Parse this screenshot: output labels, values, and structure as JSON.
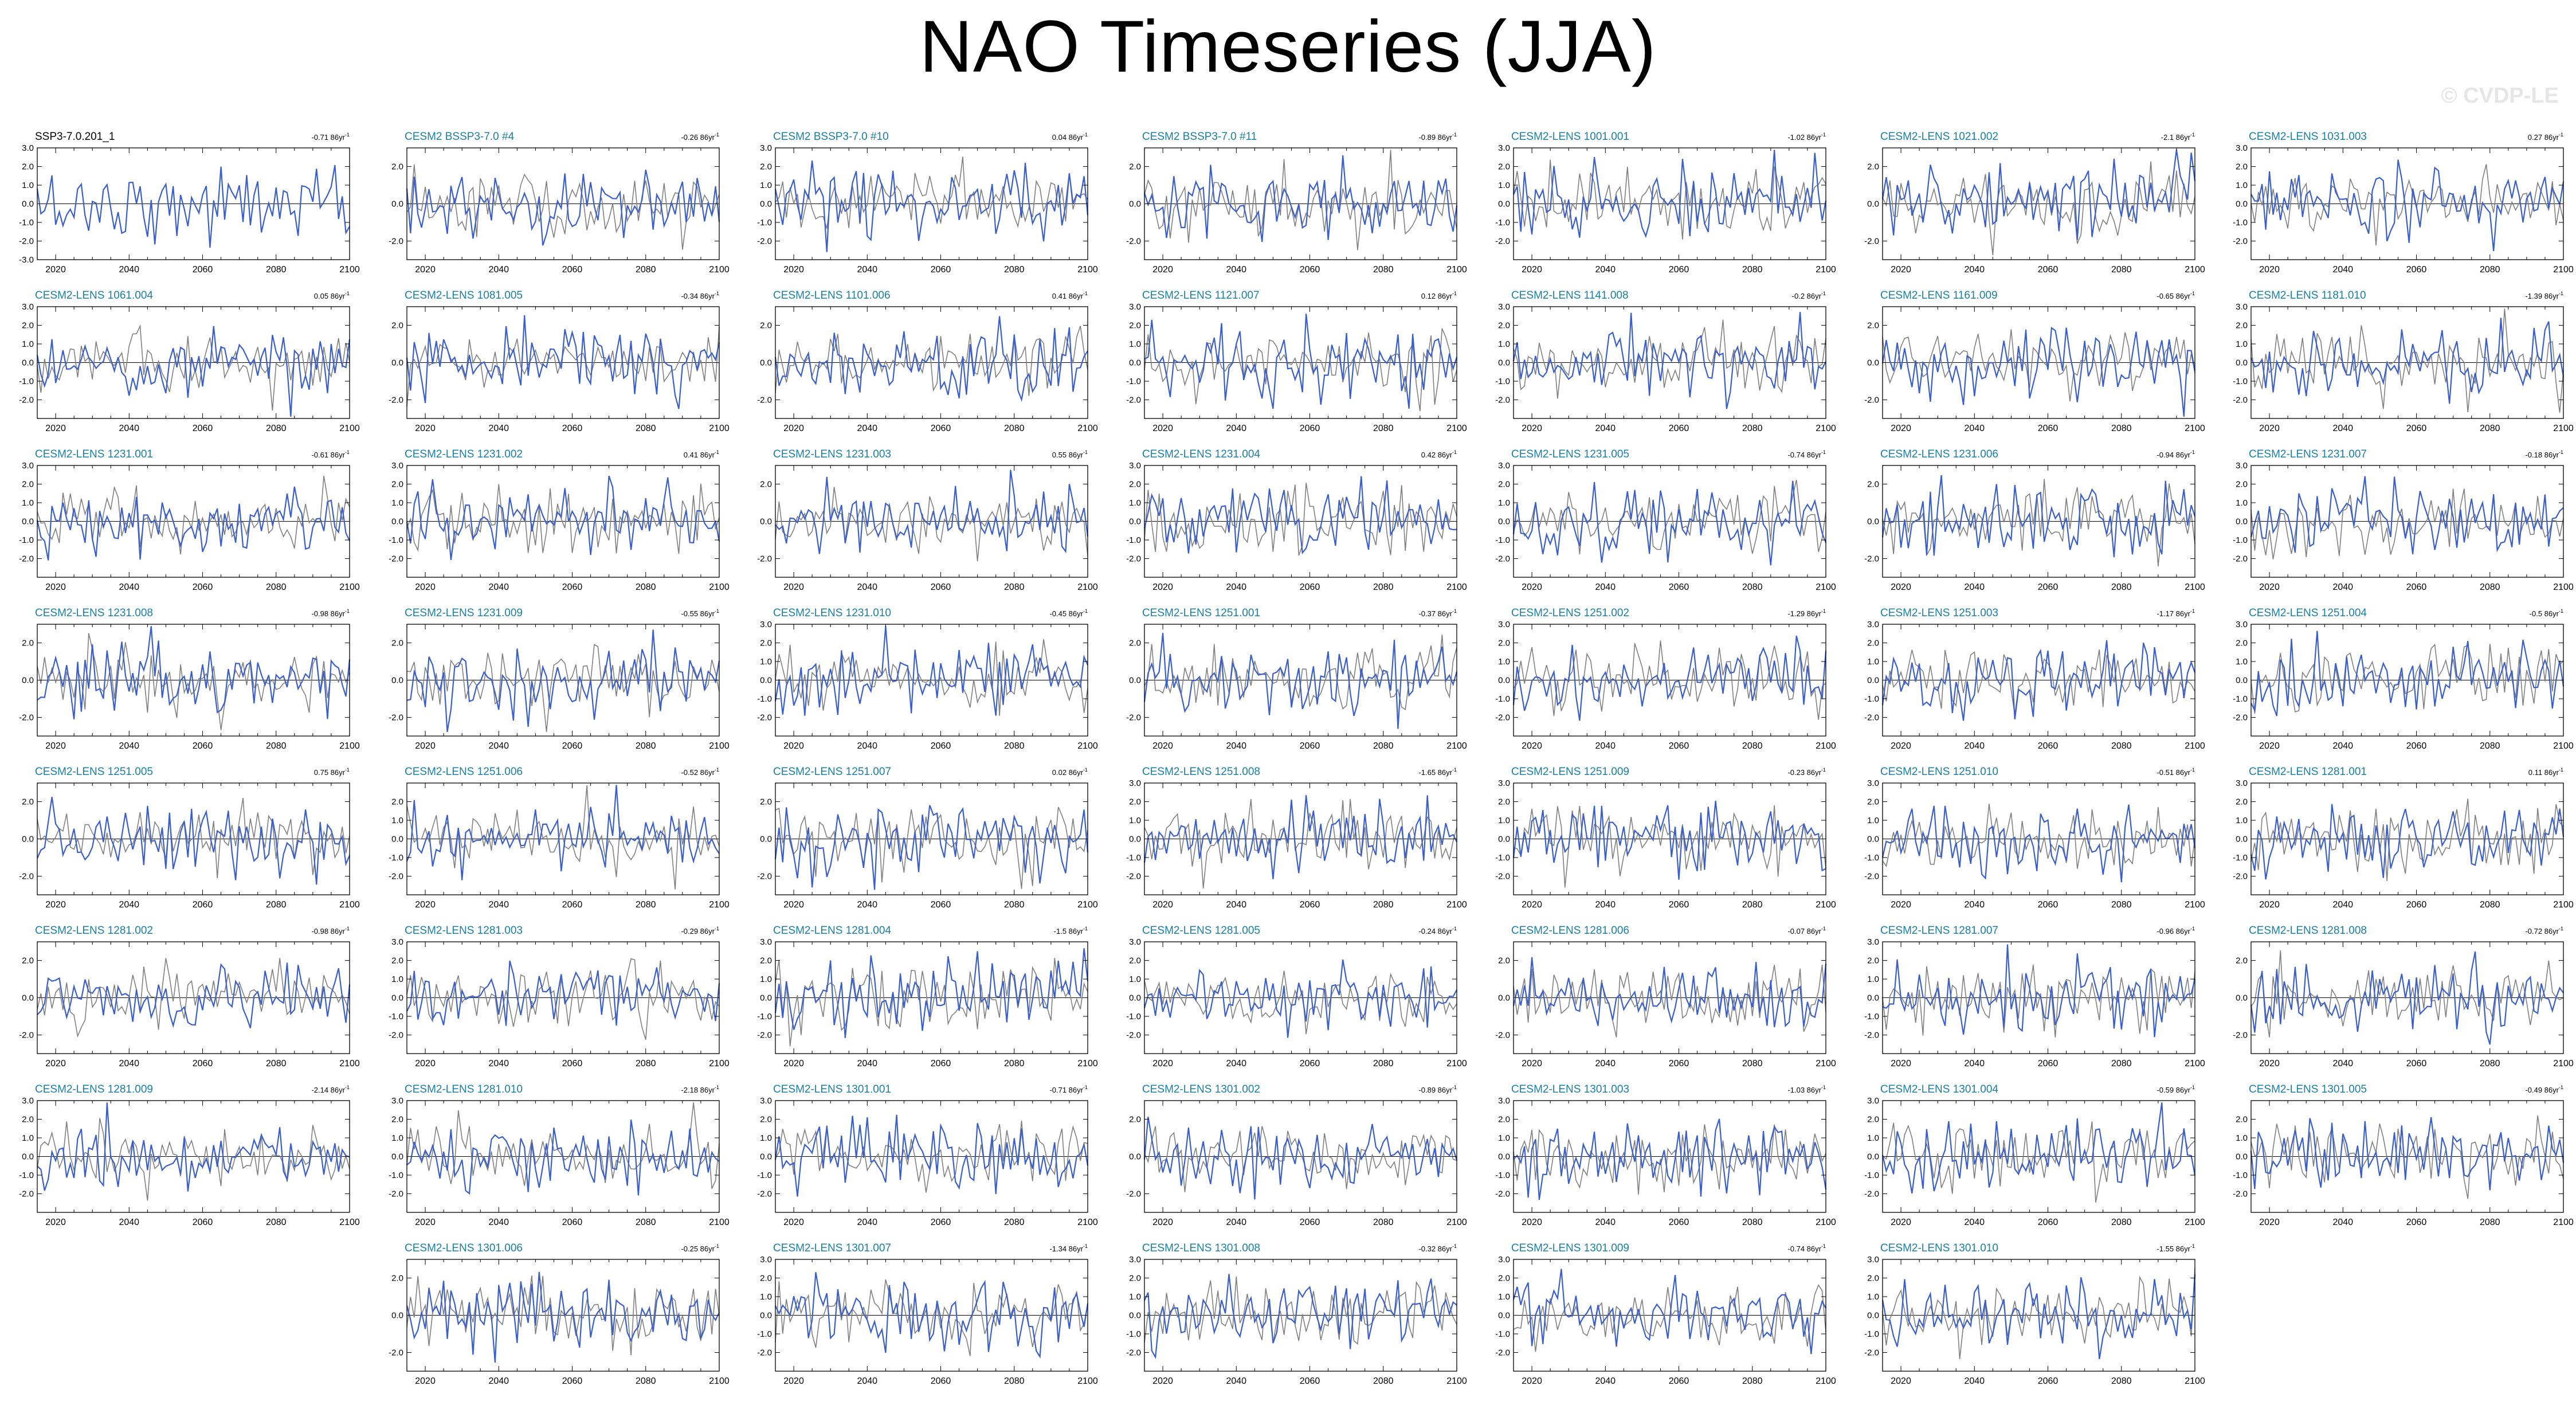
{
  "page": {
    "title": "NAO Timeseries (JJA)",
    "watermark": "© CVDP-LE"
  },
  "colors": {
    "obs_title": "#000000",
    "model_title": "#1a7fa6",
    "model_line": "#3a5fcd",
    "obs_line": "#808080",
    "axis": "#000000"
  },
  "chart_data": {
    "type": "line",
    "xlim": [
      2015,
      2100
    ],
    "x_ticks": [
      2020,
      2040,
      2060,
      2080,
      2100
    ],
    "grid": false,
    "panels": [
      {
        "name": "SSP3-7.0.201_1",
        "trend": "-0.71 86yr",
        "obs": true,
        "yticks": [
          -3.0,
          -2.0,
          -1.0,
          0.0,
          1.0,
          2.0,
          3.0
        ],
        "ylim": [
          -3,
          3
        ]
      },
      {
        "name": "CESM2 BSSP3-7.0 #4",
        "trend": "-0.26 86yr",
        "yticks": [
          -2.0,
          0.0,
          2.0
        ],
        "ylim": [
          -3,
          3
        ]
      },
      {
        "name": "CESM2 BSSP3-7.0 #10",
        "trend": "0.04 86yr",
        "yticks": [
          -2.0,
          -1.0,
          0.0,
          1.0,
          2.0,
          3.0
        ],
        "ylim": [
          -3,
          3
        ]
      },
      {
        "name": "CESM2 BSSP3-7.0 #11",
        "trend": "-0.89 86yr",
        "yticks": [
          -2.0,
          0.0,
          2.0
        ],
        "ylim": [
          -3,
          3
        ]
      },
      {
        "name": "CESM2-LENS 1001.001",
        "trend": "-1.02 86yr",
        "yticks": [
          -2.0,
          -1.0,
          0.0,
          1.0,
          2.0,
          3.0
        ],
        "ylim": [
          -3,
          3
        ]
      },
      {
        "name": "CESM2-LENS 1021.002",
        "trend": "-2.1 86yr",
        "yticks": [
          -2.0,
          0.0,
          2.0
        ],
        "ylim": [
          -3,
          3
        ]
      },
      {
        "name": "CESM2-LENS 1031.003",
        "trend": "0.27 86yr",
        "yticks": [
          -2.0,
          -1.0,
          0.0,
          1.0,
          2.0,
          3.0
        ],
        "ylim": [
          -3,
          3
        ]
      },
      {
        "name": "CESM2-LENS 1061.004",
        "trend": "0.05 86yr",
        "yticks": [
          -2.0,
          -1.0,
          0.0,
          1.0,
          2.0,
          3.0
        ],
        "ylim": [
          -3,
          3
        ]
      },
      {
        "name": "CESM2-LENS 1081.005",
        "trend": "-0.34 86yr",
        "yticks": [
          -2.0,
          0.0,
          2.0
        ],
        "ylim": [
          -3,
          3
        ]
      },
      {
        "name": "CESM2-LENS 1101.006",
        "trend": "0.41 86yr",
        "yticks": [
          -2.0,
          0.0,
          2.0
        ],
        "ylim": [
          -3,
          3
        ]
      },
      {
        "name": "CESM2-LENS 1121.007",
        "trend": "0.12 86yr",
        "yticks": [
          -2.0,
          -1.0,
          0.0,
          1.0,
          2.0,
          3.0
        ],
        "ylim": [
          -3,
          3
        ]
      },
      {
        "name": "CESM2-LENS 1141.008",
        "trend": "-0.2 86yr",
        "yticks": [
          -2.0,
          -1.0,
          0.0,
          1.0,
          2.0,
          3.0
        ],
        "ylim": [
          -3,
          3
        ]
      },
      {
        "name": "CESM2-LENS 1161.009",
        "trend": "-0.65 86yr",
        "yticks": [
          -2.0,
          0.0,
          2.0
        ],
        "ylim": [
          -3,
          3
        ]
      },
      {
        "name": "CESM2-LENS 1181.010",
        "trend": "-1.39 86yr",
        "yticks": [
          -2.0,
          -1.0,
          0.0,
          1.0,
          2.0,
          3.0
        ],
        "ylim": [
          -3,
          3
        ]
      },
      {
        "name": "CESM2-LENS 1231.001",
        "trend": "-0.61 86yr",
        "yticks": [
          -2.0,
          -1.0,
          0.0,
          1.0,
          2.0,
          3.0
        ],
        "ylim": [
          -3,
          3
        ]
      },
      {
        "name": "CESM2-LENS 1231.002",
        "trend": "0.41 86yr",
        "yticks": [
          -2.0,
          -1.0,
          0.0,
          1.0,
          2.0,
          3.0
        ],
        "ylim": [
          -3,
          3
        ]
      },
      {
        "name": "CESM2-LENS 1231.003",
        "trend": "0.55 86yr",
        "yticks": [
          -2.0,
          0.0,
          2.0
        ],
        "ylim": [
          -3,
          3
        ]
      },
      {
        "name": "CESM2-LENS 1231.004",
        "trend": "0.42 86yr",
        "yticks": [
          -2.0,
          -1.0,
          0.0,
          1.0,
          2.0,
          3.0
        ],
        "ylim": [
          -3,
          3
        ]
      },
      {
        "name": "CESM2-LENS 1231.005",
        "trend": "-0.74 86yr",
        "yticks": [
          -2.0,
          -1.0,
          0.0,
          1.0,
          2.0,
          3.0
        ],
        "ylim": [
          -3,
          3
        ]
      },
      {
        "name": "CESM2-LENS 1231.006",
        "trend": "-0.94 86yr",
        "yticks": [
          -2.0,
          0.0,
          2.0
        ],
        "ylim": [
          -3,
          3
        ]
      },
      {
        "name": "CESM2-LENS 1231.007",
        "trend": "-0.18 86yr",
        "yticks": [
          -2.0,
          -1.0,
          0.0,
          1.0,
          2.0,
          3.0
        ],
        "ylim": [
          -3,
          3
        ]
      },
      {
        "name": "CESM2-LENS 1231.008",
        "trend": "-0.98 86yr",
        "yticks": [
          -2.0,
          0.0,
          2.0
        ],
        "ylim": [
          -3,
          3
        ]
      },
      {
        "name": "CESM2-LENS 1231.009",
        "trend": "-0.55 86yr",
        "yticks": [
          -2.0,
          0.0,
          2.0
        ],
        "ylim": [
          -3,
          3
        ]
      },
      {
        "name": "CESM2-LENS 1231.010",
        "trend": "-0.45 86yr",
        "yticks": [
          -2.0,
          -1.0,
          0.0,
          1.0,
          2.0,
          3.0
        ],
        "ylim": [
          -3,
          3
        ]
      },
      {
        "name": "CESM2-LENS 1251.001",
        "trend": "-0.37 86yr",
        "yticks": [
          -2.0,
          0.0,
          2.0
        ],
        "ylim": [
          -3,
          3
        ]
      },
      {
        "name": "CESM2-LENS 1251.002",
        "trend": "-1.29 86yr",
        "yticks": [
          -2.0,
          -1.0,
          0.0,
          1.0,
          2.0,
          3.0
        ],
        "ylim": [
          -3,
          3
        ]
      },
      {
        "name": "CESM2-LENS 1251.003",
        "trend": "-1.17 86yr",
        "yticks": [
          -2.0,
          -1.0,
          0.0,
          1.0,
          2.0,
          3.0
        ],
        "ylim": [
          -3,
          3
        ]
      },
      {
        "name": "CESM2-LENS 1251.004",
        "trend": "-0.5 86yr",
        "yticks": [
          -2.0,
          -1.0,
          0.0,
          1.0,
          2.0,
          3.0
        ],
        "ylim": [
          -3,
          3
        ]
      },
      {
        "name": "CESM2-LENS 1251.005",
        "trend": "0.75 86yr",
        "yticks": [
          -2.0,
          0.0,
          2.0
        ],
        "ylim": [
          -3,
          3
        ]
      },
      {
        "name": "CESM2-LENS 1251.006",
        "trend": "-0.52 86yr",
        "yticks": [
          -2.0,
          -1.0,
          0.0,
          1.0,
          2.0
        ],
        "ylim": [
          -3,
          3
        ]
      },
      {
        "name": "CESM2-LENS 1251.007",
        "trend": "0.02 86yr",
        "yticks": [
          -2.0,
          0.0,
          2.0
        ],
        "ylim": [
          -3,
          3
        ]
      },
      {
        "name": "CESM2-LENS 1251.008",
        "trend": "-1.65 86yr",
        "yticks": [
          -2.0,
          -1.0,
          0.0,
          1.0,
          2.0,
          3.0
        ],
        "ylim": [
          -3,
          3
        ]
      },
      {
        "name": "CESM2-LENS 1251.009",
        "trend": "-0.23 86yr",
        "yticks": [
          -2.0,
          -1.0,
          0.0,
          1.0,
          2.0,
          3.0
        ],
        "ylim": [
          -3,
          3
        ]
      },
      {
        "name": "CESM2-LENS 1251.010",
        "trend": "-0.51 86yr",
        "yticks": [
          -2.0,
          -1.0,
          0.0,
          1.0,
          2.0,
          3.0
        ],
        "ylim": [
          -3,
          3
        ]
      },
      {
        "name": "CESM2-LENS 1281.001",
        "trend": "0.11 86yr",
        "yticks": [
          -2.0,
          -1.0,
          0.0,
          1.0,
          2.0,
          3.0
        ],
        "ylim": [
          -3,
          3
        ]
      },
      {
        "name": "CESM2-LENS 1281.002",
        "trend": "-0.98 86yr",
        "yticks": [
          -2.0,
          0.0,
          2.0
        ],
        "ylim": [
          -3,
          3
        ]
      },
      {
        "name": "CESM2-LENS 1281.003",
        "trend": "-0.29 86yr",
        "yticks": [
          -2.0,
          -1.0,
          0.0,
          1.0,
          2.0,
          3.0
        ],
        "ylim": [
          -3,
          3
        ]
      },
      {
        "name": "CESM2-LENS 1281.004",
        "trend": "-1.5 86yr",
        "yticks": [
          -2.0,
          -1.0,
          0.0,
          1.0,
          2.0,
          3.0
        ],
        "ylim": [
          -3,
          3
        ]
      },
      {
        "name": "CESM2-LENS 1281.005",
        "trend": "-0.24 86yr",
        "yticks": [
          -2.0,
          -1.0,
          0.0,
          1.0,
          2.0,
          3.0
        ],
        "ylim": [
          -3,
          3
        ]
      },
      {
        "name": "CESM2-LENS 1281.006",
        "trend": "-0.07 86yr",
        "yticks": [
          -2.0,
          0.0,
          2.0
        ],
        "ylim": [
          -3,
          3
        ]
      },
      {
        "name": "CESM2-LENS 1281.007",
        "trend": "-0.96 86yr",
        "yticks": [
          -2.0,
          -1.0,
          0.0,
          1.0,
          2.0,
          3.0
        ],
        "ylim": [
          -3,
          3
        ]
      },
      {
        "name": "CESM2-LENS 1281.008",
        "trend": "-0.72 86yr",
        "yticks": [
          -2.0,
          0.0,
          2.0
        ],
        "ylim": [
          -3,
          3
        ]
      },
      {
        "name": "CESM2-LENS 1281.009",
        "trend": "-2.14 86yr",
        "yticks": [
          -2.0,
          -1.0,
          0.0,
          1.0,
          2.0,
          3.0
        ],
        "ylim": [
          -3,
          3
        ]
      },
      {
        "name": "CESM2-LENS 1281.010",
        "trend": "-2.18 86yr",
        "yticks": [
          -2.0,
          -1.0,
          0.0,
          1.0,
          2.0,
          3.0
        ],
        "ylim": [
          -3,
          3
        ]
      },
      {
        "name": "CESM2-LENS 1301.001",
        "trend": "-0.71 86yr",
        "yticks": [
          -2.0,
          -1.0,
          0.0,
          1.0,
          2.0,
          3.0
        ],
        "ylim": [
          -3,
          3
        ]
      },
      {
        "name": "CESM2-LENS 1301.002",
        "trend": "-0.89 86yr",
        "yticks": [
          -2.0,
          0.0,
          2.0
        ],
        "ylim": [
          -3,
          3
        ]
      },
      {
        "name": "CESM2-LENS 1301.003",
        "trend": "-1.03 86yr",
        "yticks": [
          -2.0,
          -1.0,
          0.0,
          1.0,
          2.0,
          3.0
        ],
        "ylim": [
          -3,
          3
        ]
      },
      {
        "name": "CESM2-LENS 1301.004",
        "trend": "-0.59 86yr",
        "yticks": [
          -2.0,
          -1.0,
          0.0,
          1.0,
          2.0,
          3.0
        ],
        "ylim": [
          -3,
          3
        ]
      },
      {
        "name": "CESM2-LENS 1301.005",
        "trend": "-0.49 86yr",
        "yticks": [
          -2.0,
          -1.0,
          0.0,
          1.0,
          2.0
        ],
        "ylim": [
          -3,
          3
        ]
      },
      {
        "name": "CESM2-LENS 1301.006",
        "trend": "-0.25 86yr",
        "yticks": [
          -2.0,
          0.0,
          2.0
        ],
        "ylim": [
          -3,
          3
        ]
      },
      {
        "name": "CESM2-LENS 1301.007",
        "trend": "-1.34 86yr",
        "yticks": [
          -2.0,
          -1.0,
          0.0,
          1.0,
          2.0,
          3.0
        ],
        "ylim": [
          -3,
          3
        ]
      },
      {
        "name": "CESM2-LENS 1301.008",
        "trend": "-0.32 86yr",
        "yticks": [
          -2.0,
          -1.0,
          0.0,
          1.0,
          2.0,
          3.0
        ],
        "ylim": [
          -3,
          3
        ]
      },
      {
        "name": "CESM2-LENS 1301.009",
        "trend": "-0.74 86yr",
        "yticks": [
          -2.0,
          -1.0,
          0.0,
          1.0,
          2.0,
          3.0
        ],
        "ylim": [
          -3,
          3
        ]
      },
      {
        "name": "CESM2-LENS 1301.010",
        "trend": "-1.55 86yr",
        "yticks": [
          -2.0,
          -1.0,
          0.0,
          1.0,
          2.0,
          3.0
        ],
        "ylim": [
          -3,
          3
        ]
      }
    ]
  }
}
